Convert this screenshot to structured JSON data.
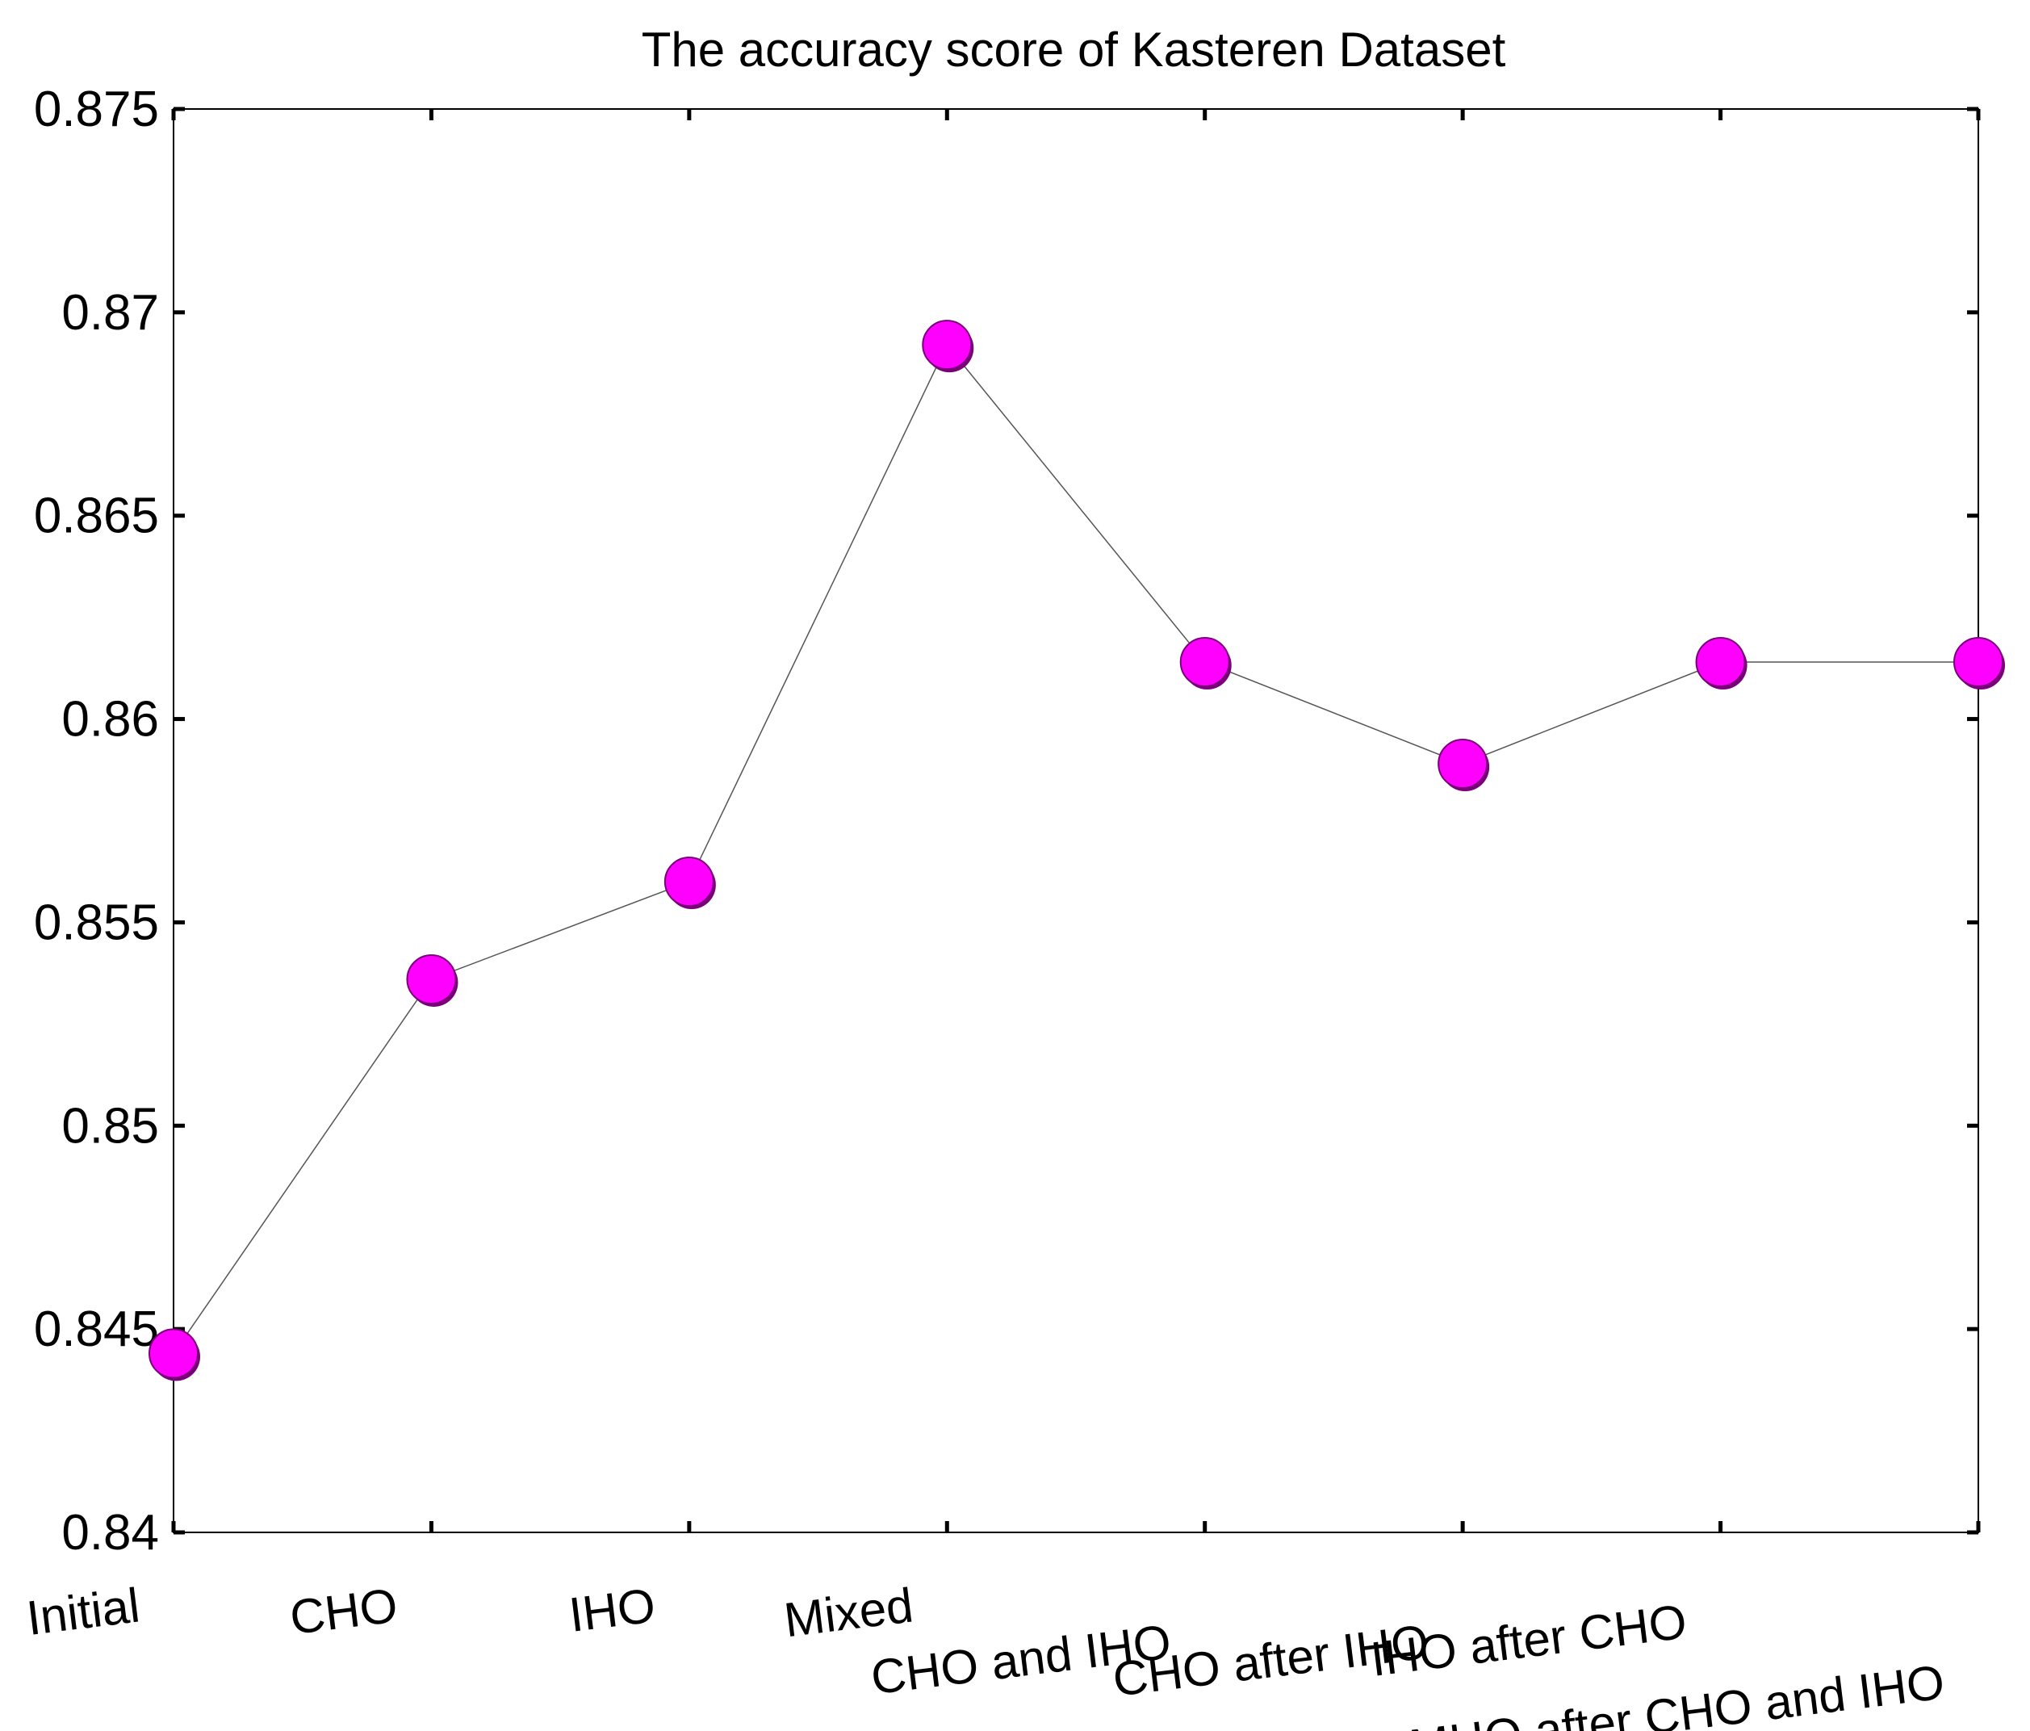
{
  "chart_data": {
    "type": "line",
    "title": "The accuracy score of Kasteren Dataset",
    "xlabel": "",
    "ylabel": "",
    "categories": [
      "Initial",
      "CHO",
      "IHO",
      "Mixed",
      "CHO and IHO",
      "CHO after IHO",
      "IHO after CHO",
      "MHO after CHO and IHO"
    ],
    "series": [
      {
        "values": [
          0.8444,
          0.8536,
          0.856,
          0.8692,
          0.8614,
          0.8589,
          0.8614,
          0.8614
        ]
      }
    ],
    "ylim": [
      0.84,
      0.875
    ],
    "yticks": [
      "0.84",
      "0.845",
      "0.85",
      "0.855",
      "0.86",
      "0.865",
      "0.87",
      "0.875"
    ],
    "grid": false,
    "legend": "none",
    "colors": {
      "marker_fill": "#ff00ff",
      "marker_edge": "#7a007a",
      "line": "#555555",
      "axis": "#000000"
    }
  }
}
